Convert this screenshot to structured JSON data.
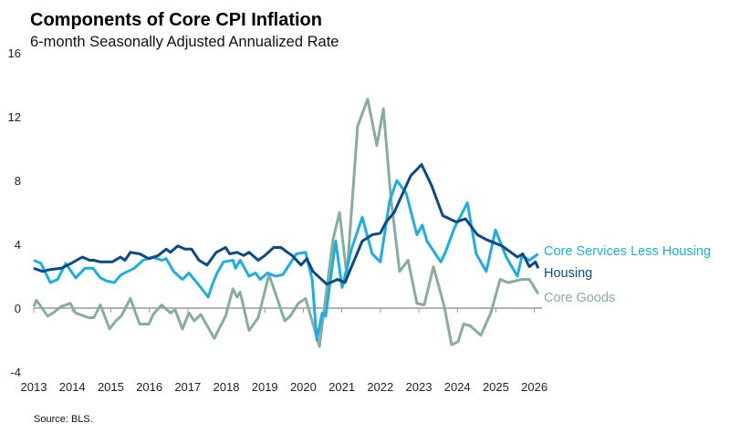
{
  "chart_data": {
    "type": "line",
    "title": "Components of Core CPI Inflation",
    "subtitle": "6-month Seasonally Adjusted Annualized Rate",
    "source": "Source: BLS.",
    "xlabel": "",
    "ylabel": "",
    "xlim": [
      2013,
      2026.2
    ],
    "ylim": [
      -4,
      16
    ],
    "yticks": [
      -4,
      0,
      4,
      8,
      12,
      16
    ],
    "xticks": [
      2013,
      2014,
      2015,
      2016,
      2017,
      2018,
      2019,
      2020,
      2021,
      2022,
      2023,
      2024,
      2025,
      2026
    ],
    "grid": false,
    "legend": "direct labels at right end of lines",
    "series": [
      {
        "name": "Core Services Less Housing",
        "color": "#1AADE6",
        "points": [
          [
            2013.0,
            3.0
          ],
          [
            2013.19,
            2.8
          ],
          [
            2013.43,
            1.6
          ],
          [
            2013.62,
            1.8
          ],
          [
            2013.83,
            2.8
          ],
          [
            2014.09,
            1.9
          ],
          [
            2014.33,
            2.5
          ],
          [
            2014.54,
            2.5
          ],
          [
            2014.73,
            1.9
          ],
          [
            2014.9,
            1.7
          ],
          [
            2015.09,
            1.6
          ],
          [
            2015.27,
            2.1
          ],
          [
            2015.61,
            2.5
          ],
          [
            2015.84,
            3.0
          ],
          [
            2016.08,
            3.2
          ],
          [
            2016.32,
            3.0
          ],
          [
            2016.44,
            3.1
          ],
          [
            2016.63,
            2.3
          ],
          [
            2016.86,
            1.8
          ],
          [
            2017.03,
            2.2
          ],
          [
            2017.27,
            1.5
          ],
          [
            2017.53,
            0.7
          ],
          [
            2017.64,
            1.5
          ],
          [
            2017.76,
            2.2
          ],
          [
            2017.93,
            2.9
          ],
          [
            2018.17,
            3.0
          ],
          [
            2018.24,
            2.5
          ],
          [
            2018.36,
            3.0
          ],
          [
            2018.59,
            2.0
          ],
          [
            2018.76,
            2.2
          ],
          [
            2018.88,
            1.8
          ],
          [
            2019.07,
            2.2
          ],
          [
            2019.28,
            2.0
          ],
          [
            2019.47,
            2.1
          ],
          [
            2019.82,
            3.4
          ],
          [
            2020.06,
            3.5
          ],
          [
            2020.23,
            1.8
          ],
          [
            2020.35,
            -2.0
          ],
          [
            2020.49,
            -0.3
          ],
          [
            2020.58,
            -0.5
          ],
          [
            2020.84,
            4.2
          ],
          [
            2021.01,
            1.3
          ],
          [
            2021.25,
            3.7
          ],
          [
            2021.53,
            5.7
          ],
          [
            2021.79,
            3.4
          ],
          [
            2022.0,
            2.9
          ],
          [
            2022.24,
            6.7
          ],
          [
            2022.43,
            8.0
          ],
          [
            2022.67,
            7.2
          ],
          [
            2022.95,
            4.6
          ],
          [
            2023.09,
            5.2
          ],
          [
            2023.21,
            4.2
          ],
          [
            2023.57,
            2.9
          ],
          [
            2023.69,
            3.5
          ],
          [
            2023.92,
            5.0
          ],
          [
            2024.26,
            6.6
          ],
          [
            2024.49,
            3.4
          ],
          [
            2024.75,
            2.3
          ],
          [
            2024.99,
            4.9
          ],
          [
            2025.27,
            3.2
          ],
          [
            2025.56,
            2.0
          ],
          [
            2025.68,
            3.3
          ],
          [
            2025.87,
            3.0
          ],
          [
            2026.1,
            3.4
          ]
        ]
      },
      {
        "name": "Housing",
        "color": "#0B4A86",
        "points": [
          [
            2013.0,
            2.5
          ],
          [
            2013.24,
            2.3
          ],
          [
            2013.38,
            2.4
          ],
          [
            2013.71,
            2.5
          ],
          [
            2013.97,
            2.8
          ],
          [
            2014.26,
            3.2
          ],
          [
            2014.45,
            3.0
          ],
          [
            2014.56,
            3.0
          ],
          [
            2014.73,
            2.9
          ],
          [
            2015.04,
            2.9
          ],
          [
            2015.25,
            3.2
          ],
          [
            2015.37,
            3.0
          ],
          [
            2015.51,
            3.5
          ],
          [
            2015.75,
            3.4
          ],
          [
            2015.99,
            3.1
          ],
          [
            2016.23,
            3.3
          ],
          [
            2016.44,
            3.7
          ],
          [
            2016.55,
            3.5
          ],
          [
            2016.74,
            3.9
          ],
          [
            2016.93,
            3.7
          ],
          [
            2017.1,
            3.7
          ],
          [
            2017.29,
            3.0
          ],
          [
            2017.5,
            2.7
          ],
          [
            2017.74,
            3.5
          ],
          [
            2017.98,
            3.8
          ],
          [
            2018.09,
            3.4
          ],
          [
            2018.28,
            3.5
          ],
          [
            2018.45,
            3.3
          ],
          [
            2018.59,
            3.5
          ],
          [
            2018.83,
            3.0
          ],
          [
            2019.0,
            3.3
          ],
          [
            2019.23,
            3.8
          ],
          [
            2019.42,
            3.8
          ],
          [
            2019.59,
            3.5
          ],
          [
            2019.71,
            3.3
          ],
          [
            2019.94,
            2.7
          ],
          [
            2020.09,
            3.1
          ],
          [
            2020.25,
            2.3
          ],
          [
            2020.61,
            1.5
          ],
          [
            2020.89,
            1.8
          ],
          [
            2021.08,
            1.6
          ],
          [
            2021.53,
            4.2
          ],
          [
            2021.79,
            4.6
          ],
          [
            2022.0,
            4.7
          ],
          [
            2022.15,
            5.4
          ],
          [
            2022.36,
            6.0
          ],
          [
            2022.79,
            8.3
          ],
          [
            2023.07,
            9.0
          ],
          [
            2023.33,
            7.7
          ],
          [
            2023.62,
            5.8
          ],
          [
            2023.97,
            5.4
          ],
          [
            2024.21,
            5.6
          ],
          [
            2024.52,
            4.6
          ],
          [
            2024.75,
            4.3
          ],
          [
            2025.16,
            3.9
          ],
          [
            2025.56,
            3.2
          ],
          [
            2025.7,
            3.4
          ],
          [
            2025.87,
            2.6
          ],
          [
            2026.03,
            2.9
          ],
          [
            2026.1,
            2.5
          ]
        ]
      },
      {
        "name": "Core Goods",
        "color": "#86AE9B",
        "points": [
          [
            2013.0,
            0.1
          ],
          [
            2013.07,
            0.5
          ],
          [
            2013.36,
            -0.5
          ],
          [
            2013.5,
            -0.3
          ],
          [
            2013.71,
            0.1
          ],
          [
            2013.95,
            0.3
          ],
          [
            2014.09,
            -0.3
          ],
          [
            2014.42,
            -0.6
          ],
          [
            2014.56,
            -0.6
          ],
          [
            2014.73,
            0.2
          ],
          [
            2014.97,
            -1.3
          ],
          [
            2015.13,
            -0.8
          ],
          [
            2015.27,
            -0.5
          ],
          [
            2015.51,
            0.6
          ],
          [
            2015.75,
            -1.0
          ],
          [
            2015.99,
            -1.0
          ],
          [
            2016.1,
            -0.4
          ],
          [
            2016.32,
            0.2
          ],
          [
            2016.55,
            -0.3
          ],
          [
            2016.67,
            -0.1
          ],
          [
            2016.86,
            -1.3
          ],
          [
            2017.03,
            -0.3
          ],
          [
            2017.17,
            -0.8
          ],
          [
            2017.34,
            -0.4
          ],
          [
            2017.69,
            -1.9
          ],
          [
            2017.81,
            -1.3
          ],
          [
            2017.98,
            -0.5
          ],
          [
            2018.17,
            1.2
          ],
          [
            2018.28,
            0.7
          ],
          [
            2018.36,
            1.0
          ],
          [
            2018.59,
            -1.4
          ],
          [
            2018.83,
            -0.6
          ],
          [
            2019.11,
            2.1
          ],
          [
            2019.28,
            0.9
          ],
          [
            2019.52,
            -0.8
          ],
          [
            2019.66,
            -0.5
          ],
          [
            2019.87,
            0.3
          ],
          [
            2020.06,
            0.6
          ],
          [
            2020.42,
            -2.4
          ],
          [
            2020.77,
            4.3
          ],
          [
            2020.94,
            6.0
          ],
          [
            2021.13,
            2.0
          ],
          [
            2021.41,
            11.4
          ],
          [
            2021.67,
            13.1
          ],
          [
            2021.91,
            10.2
          ],
          [
            2022.08,
            12.5
          ],
          [
            2022.27,
            7.0
          ],
          [
            2022.5,
            2.3
          ],
          [
            2022.72,
            3.0
          ],
          [
            2022.95,
            0.3
          ],
          [
            2023.14,
            0.2
          ],
          [
            2023.38,
            2.6
          ],
          [
            2023.66,
            0.1
          ],
          [
            2023.85,
            -2.3
          ],
          [
            2024.02,
            -2.1
          ],
          [
            2024.16,
            -1.0
          ],
          [
            2024.33,
            -1.1
          ],
          [
            2024.61,
            -1.7
          ],
          [
            2024.87,
            -0.3
          ],
          [
            2025.11,
            1.8
          ],
          [
            2025.32,
            1.6
          ],
          [
            2025.68,
            1.8
          ],
          [
            2025.87,
            1.8
          ],
          [
            2026.1,
            0.9
          ]
        ]
      }
    ]
  }
}
